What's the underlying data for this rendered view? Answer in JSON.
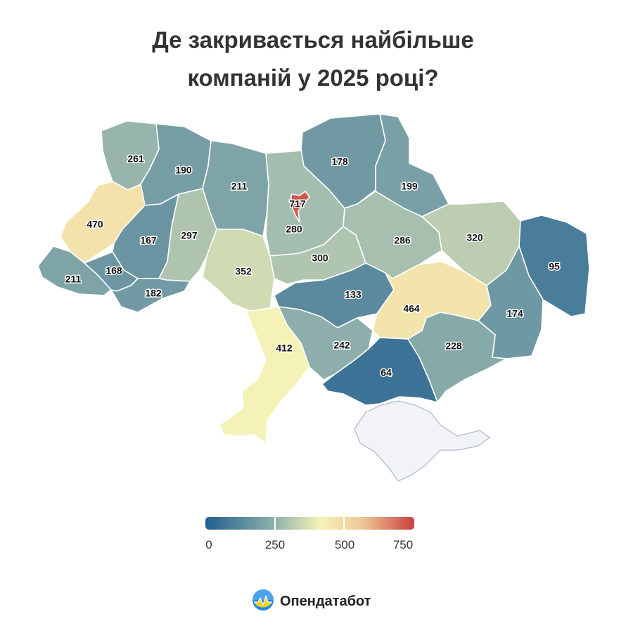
{
  "title": {
    "line1": "Де закривається найбільше",
    "line2": "компаній у 2025 році?"
  },
  "map": {
    "regions": [
      {
        "name": "Volyn",
        "value": 261
      },
      {
        "name": "Rivne",
        "value": 190
      },
      {
        "name": "Zhytomyr",
        "value": 211
      },
      {
        "name": "Kyiv region",
        "value": 280
      },
      {
        "name": "Kyiv city",
        "value": 717
      },
      {
        "name": "Chernihiv",
        "value": 178
      },
      {
        "name": "Sumy",
        "value": 199
      },
      {
        "name": "Lviv",
        "value": 470
      },
      {
        "name": "Ternopil",
        "value": 167
      },
      {
        "name": "Khmelnytskyi",
        "value": 297
      },
      {
        "name": "Zakarpattia",
        "value": 211
      },
      {
        "name": "Ivano-Frankivsk",
        "value": 168
      },
      {
        "name": "Chernivtsi",
        "value": 182
      },
      {
        "name": "Vinnytsia",
        "value": 352
      },
      {
        "name": "Cherkasy",
        "value": 300
      },
      {
        "name": "Poltava",
        "value": 286
      },
      {
        "name": "Kharkiv",
        "value": 320
      },
      {
        "name": "Luhansk",
        "value": 95
      },
      {
        "name": "Kirovohrad",
        "value": 133
      },
      {
        "name": "Dnipropetrovsk",
        "value": 464
      },
      {
        "name": "Donetsk",
        "value": 174
      },
      {
        "name": "Zaporizhzhia",
        "value": 228
      },
      {
        "name": "Mykolaiv",
        "value": 242
      },
      {
        "name": "Odesa",
        "value": 412
      },
      {
        "name": "Kherson",
        "value": 64
      },
      {
        "name": "Crimea",
        "value": null
      }
    ],
    "no_data_color": "#f2f3f7"
  },
  "legend": {
    "ticks": [
      "0",
      "250",
      "500",
      "750"
    ],
    "min": 0,
    "max": 750,
    "colors": [
      "#1f5e8f",
      "#8fb0ab",
      "#f5f2b8",
      "#efc895",
      "#c84040"
    ]
  },
  "brand": {
    "name": "Опендатабот",
    "logo_icon": "opendatabot-sun-logo"
  }
}
